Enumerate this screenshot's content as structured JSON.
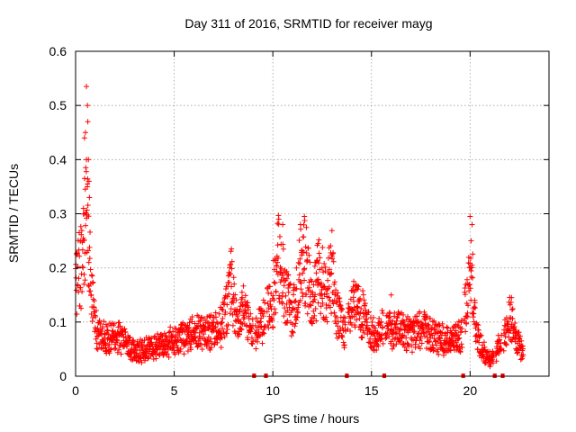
{
  "chart_data": {
    "type": "scatter",
    "title": "Day 311 of 2016, SRMTID for receiver mayg",
    "xlabel": "GPS time / hours",
    "ylabel": "SRMTID / TECUs",
    "xlim": [
      0,
      24
    ],
    "ylim": [
      0,
      0.6
    ],
    "xticks": [
      0,
      5,
      10,
      15,
      20
    ],
    "xtick_labels": [
      "0",
      "5",
      "10",
      "15",
      "20"
    ],
    "yticks": [
      0,
      0.1,
      0.2,
      0.3,
      0.4,
      0.5,
      0.6
    ],
    "ytick_labels": [
      "0",
      "0.1",
      "0.2",
      "0.3",
      "0.4",
      "0.5",
      "0.6"
    ],
    "grid": true,
    "marker": "+",
    "color": "#ff0000",
    "profile": [
      [
        0.0,
        0.16
      ],
      [
        0.3,
        0.21
      ],
      [
        0.5,
        0.3
      ],
      [
        0.7,
        0.24
      ],
      [
        0.9,
        0.12
      ],
      [
        1.1,
        0.075
      ],
      [
        1.5,
        0.07
      ],
      [
        2.0,
        0.075
      ],
      [
        2.5,
        0.065
      ],
      [
        3.0,
        0.045
      ],
      [
        3.5,
        0.05
      ],
      [
        4.0,
        0.055
      ],
      [
        4.5,
        0.06
      ],
      [
        5.0,
        0.065
      ],
      [
        5.5,
        0.07
      ],
      [
        6.0,
        0.08
      ],
      [
        6.5,
        0.085
      ],
      [
        7.0,
        0.08
      ],
      [
        7.5,
        0.1
      ],
      [
        7.9,
        0.17
      ],
      [
        8.2,
        0.09
      ],
      [
        8.5,
        0.12
      ],
      [
        9.0,
        0.08
      ],
      [
        9.5,
        0.1
      ],
      [
        10.0,
        0.15
      ],
      [
        10.3,
        0.22
      ],
      [
        10.6,
        0.16
      ],
      [
        11.0,
        0.11
      ],
      [
        11.3,
        0.18
      ],
      [
        11.6,
        0.22
      ],
      [
        12.0,
        0.13
      ],
      [
        12.3,
        0.19
      ],
      [
        12.7,
        0.16
      ],
      [
        13.0,
        0.2
      ],
      [
        13.2,
        0.12
      ],
      [
        13.7,
        0.08
      ],
      [
        14.0,
        0.12
      ],
      [
        14.4,
        0.13
      ],
      [
        14.8,
        0.09
      ],
      [
        15.2,
        0.07
      ],
      [
        15.7,
        0.1
      ],
      [
        16.0,
        0.08
      ],
      [
        16.5,
        0.085
      ],
      [
        17.0,
        0.075
      ],
      [
        17.5,
        0.09
      ],
      [
        18.0,
        0.075
      ],
      [
        18.5,
        0.07
      ],
      [
        19.0,
        0.065
      ],
      [
        19.5,
        0.075
      ],
      [
        19.9,
        0.15
      ],
      [
        20.1,
        0.2
      ],
      [
        20.3,
        0.08
      ],
      [
        20.6,
        0.05
      ],
      [
        21.0,
        0.03
      ],
      [
        21.5,
        0.06
      ],
      [
        21.8,
        0.08
      ],
      [
        22.0,
        0.11
      ],
      [
        22.3,
        0.07
      ],
      [
        22.7,
        0.04
      ]
    ],
    "spikes": [
      [
        0.55,
        0.535
      ],
      [
        0.6,
        0.5
      ],
      [
        0.62,
        0.47
      ],
      [
        0.5,
        0.45
      ],
      [
        0.45,
        0.44
      ],
      [
        0.55,
        0.4
      ],
      [
        0.65,
        0.4
      ],
      [
        0.68,
        0.36
      ],
      [
        0.6,
        0.35
      ],
      [
        0.7,
        0.33
      ],
      [
        0.4,
        0.31
      ],
      [
        0.45,
        0.3
      ],
      [
        10.3,
        0.29
      ],
      [
        10.5,
        0.28
      ],
      [
        11.6,
        0.295
      ],
      [
        11.4,
        0.28
      ],
      [
        20.0,
        0.295
      ],
      [
        20.1,
        0.28
      ],
      [
        20.05,
        0.25
      ],
      [
        7.9,
        0.235
      ],
      [
        12.3,
        0.245
      ],
      [
        13.0,
        0.22
      ],
      [
        14.1,
        0.175
      ],
      [
        16.0,
        0.15
      ],
      [
        22.1,
        0.145
      ]
    ],
    "gaps": [
      [
        9.0,
        9.1
      ],
      [
        9.6,
        9.7
      ],
      [
        13.7,
        13.8
      ],
      [
        15.6,
        15.7
      ],
      [
        19.6,
        19.7
      ],
      [
        21.2,
        21.3
      ],
      [
        21.6,
        21.7
      ]
    ]
  }
}
